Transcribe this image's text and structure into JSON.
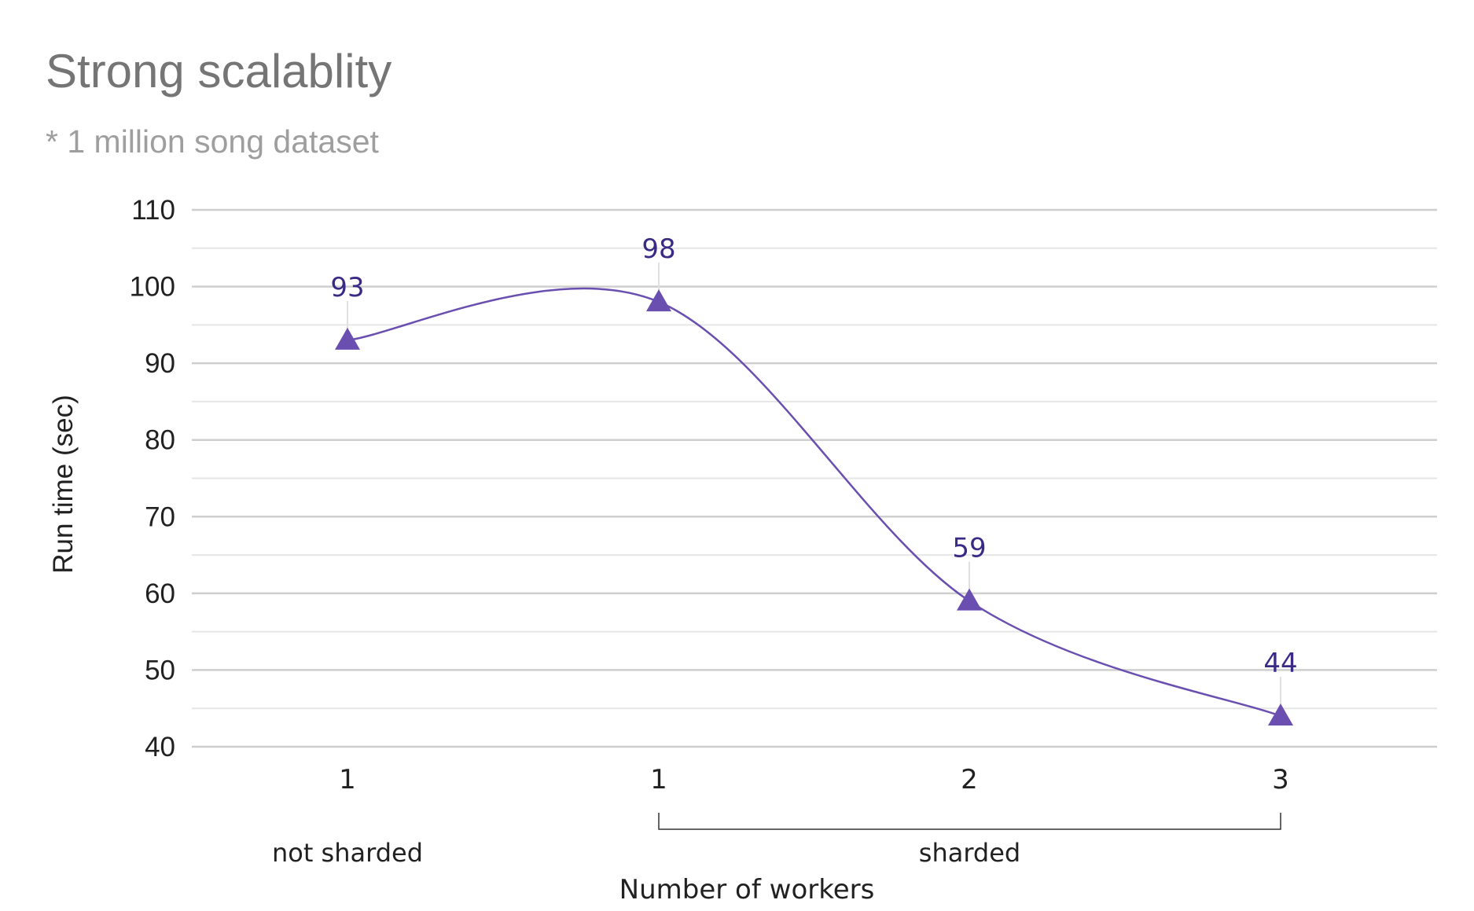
{
  "chart_data": {
    "type": "line",
    "title": "Strong scalablity",
    "subtitle": "* 1 million song dataset",
    "xlabel": "Number of workers",
    "ylabel": "Run time (sec)",
    "categories": [
      "1",
      "1",
      "2",
      "3"
    ],
    "groups": [
      {
        "label": "not sharded",
        "categories": [
          0
        ]
      },
      {
        "label": "sharded",
        "categories": [
          1,
          2,
          3
        ]
      }
    ],
    "series": [
      {
        "values": [
          93,
          98,
          59,
          44
        ]
      }
    ],
    "data_labels": [
      "93",
      "98",
      "59",
      "44"
    ],
    "yticks": [
      40,
      50,
      60,
      70,
      80,
      90,
      100,
      110
    ],
    "ylim": [
      40,
      110
    ],
    "grid": true,
    "minor_grid": true,
    "color": "#6a4fb0",
    "label_color": "#3b2a85"
  }
}
